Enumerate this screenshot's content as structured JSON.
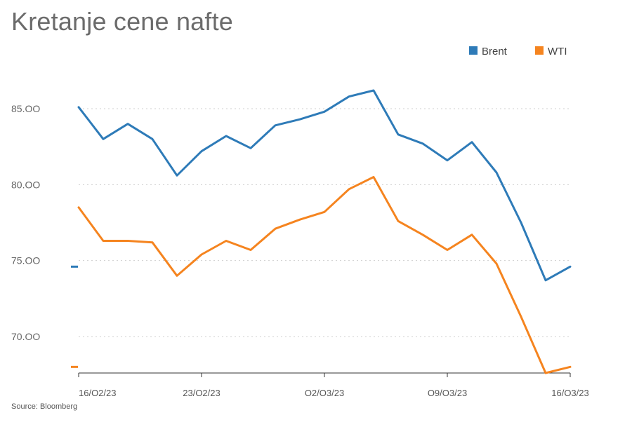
{
  "title": "Kretanje cene nafte",
  "source": "Source: Bloomberg",
  "colors": {
    "brent": "#2e7bb8",
    "wti": "#f5841f"
  },
  "chart_data": {
    "type": "line",
    "title": "Kretanje cene nafte",
    "x": [
      "16/02/23",
      "17/02/23",
      "20/02/23",
      "21/02/23",
      "22/02/23",
      "23/02/23",
      "24/02/23",
      "27/02/23",
      "28/02/23",
      "01/03/23",
      "02/03/23",
      "03/03/23",
      "06/03/23",
      "07/03/23",
      "08/03/23",
      "09/03/23",
      "10/03/23",
      "13/03/23",
      "14/03/23",
      "15/03/23",
      "16/03/23"
    ],
    "x_tick_labels": [
      "16/O2/23",
      "23/O2/23",
      "O2/O3/23",
      "O9/O3/23",
      "16/O3/23"
    ],
    "y_tick_labels": [
      "85.OO",
      "80.OO",
      "75.OO",
      "70.OO"
    ],
    "y_ticks": [
      85,
      80,
      75,
      70
    ],
    "ylim": [
      67.6,
      88
    ],
    "grid": true,
    "legend_position": "top-right",
    "series": [
      {
        "name": "Brent",
        "values": [
          85.1,
          83.0,
          84.0,
          83.0,
          80.6,
          82.2,
          83.2,
          82.4,
          83.9,
          84.3,
          84.8,
          85.8,
          86.2,
          83.3,
          82.7,
          81.6,
          82.8,
          80.8,
          77.5,
          73.7,
          74.6
        ]
      },
      {
        "name": "WTI",
        "values": [
          78.5,
          76.3,
          76.3,
          76.2,
          74.0,
          75.4,
          76.3,
          75.7,
          77.1,
          77.7,
          78.2,
          79.7,
          80.5,
          77.6,
          76.7,
          75.7,
          76.7,
          74.8,
          71.3,
          67.6,
          68.0
        ]
      }
    ],
    "last_value_markers": {
      "Brent": 74.6,
      "WTI": 68.0
    }
  }
}
